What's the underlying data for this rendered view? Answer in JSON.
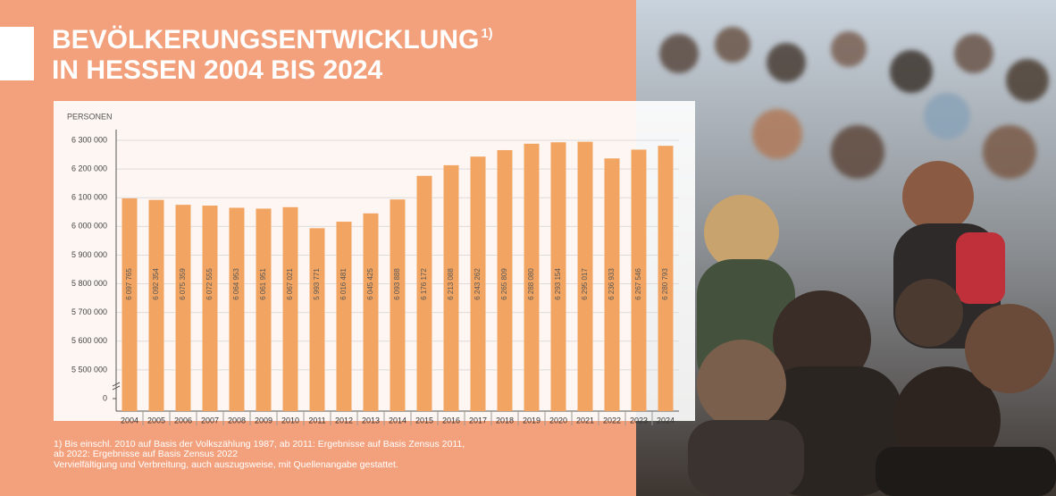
{
  "chart_data": {
    "type": "bar",
    "title_lines": [
      "BEVÖLKERUNGSENTWICKLUNG",
      "IN HESSEN 2004 BIS 2024"
    ],
    "title_note": "1)",
    "y_label": "PERSONEN",
    "categories": [
      "2004",
      "2005",
      "2006",
      "2007",
      "2008",
      "2009",
      "2010",
      "2011",
      "2012",
      "2013",
      "2014",
      "2015",
      "2016",
      "2017",
      "2018",
      "2019",
      "2020",
      "2021",
      "2022",
      "2023",
      "2024"
    ],
    "values": [
      6097765,
      6092354,
      6075359,
      6072555,
      6064953,
      6061951,
      6067021,
      5993771,
      6016481,
      6045425,
      6093888,
      6176172,
      6213088,
      6243262,
      6265809,
      6288080,
      6293154,
      6295017,
      6236933,
      6267546,
      6280793
    ],
    "value_labels": [
      "6 097 765",
      "6 092 354",
      "6 075 359",
      "6 072 555",
      "6 064 953",
      "6 061 951",
      "6 067 021",
      "5 993 771",
      "6 016 481",
      "6 045 425",
      "6 093 888",
      "6 176 172",
      "6 213 088",
      "6 243 262",
      "6 265 809",
      "6 288 080",
      "6 293 154",
      "6 295 017",
      "6 236 933",
      "6 267 546",
      "6 280 793"
    ],
    "color": "#f2a562",
    "ylim": [
      5400000,
      6300000
    ],
    "y_break": true,
    "yticks": [
      {
        "value": 0,
        "label": "0"
      },
      {
        "value": 5500000,
        "label": "5 500 000"
      },
      {
        "value": 5600000,
        "label": "5 600 000"
      },
      {
        "value": 5700000,
        "label": "5 700 000"
      },
      {
        "value": 5800000,
        "label": "5 800 000"
      },
      {
        "value": 5900000,
        "label": "5 900 000"
      },
      {
        "value": 6000000,
        "label": "6 000 000"
      },
      {
        "value": 6100000,
        "label": "6 100 000"
      },
      {
        "value": 6200000,
        "label": "6 200 000"
      },
      {
        "value": 6300000,
        "label": "6 300 000"
      }
    ],
    "grid": true,
    "notes": [
      "1) Bis einschl. 2010 auf Basis der Volkszählung 1987, ab 2011: Ergebnisse auf Basis Zensus 2011,",
      "ab 2022: Ergebnisse auf Basis Zensus 2022",
      "Vervielfältigung und Verbreitung, auch auszugsweise, mit Quellenangabe gestattet."
    ]
  }
}
